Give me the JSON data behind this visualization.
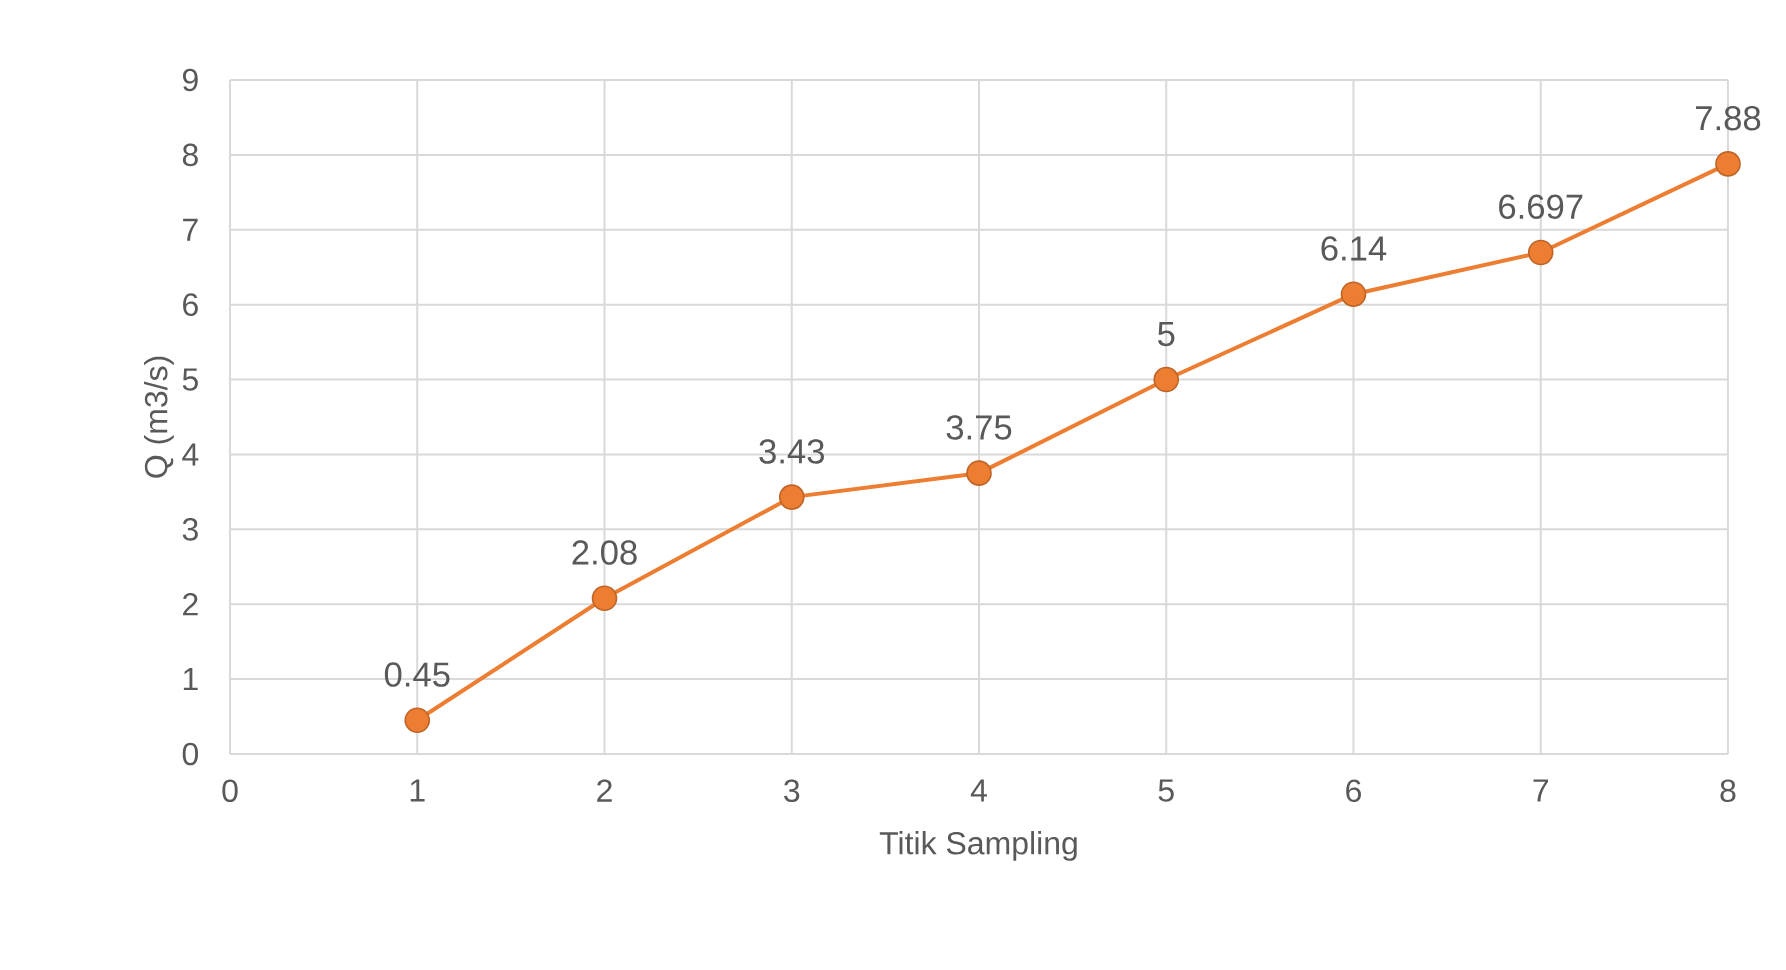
{
  "chart_data": {
    "type": "line",
    "xlabel": "Titik Sampling",
    "ylabel": "Q (m3/s)",
    "x": [
      1,
      2,
      3,
      4,
      5,
      6,
      7,
      8
    ],
    "series": [
      {
        "color": "#ed7d31",
        "values": [
          0.45,
          2.08,
          3.43,
          3.75,
          5,
          6.14,
          6.697,
          7.88
        ]
      }
    ],
    "xlim": [
      0,
      8
    ],
    "ylim": [
      0,
      9
    ],
    "xticks": [
      0,
      1,
      2,
      3,
      4,
      5,
      6,
      7,
      8
    ],
    "yticks": [
      0,
      1,
      2,
      3,
      4,
      5,
      6,
      7,
      8,
      9
    ],
    "grid": true,
    "marker": "circle",
    "line_style": "solid",
    "data_labels": true
  }
}
